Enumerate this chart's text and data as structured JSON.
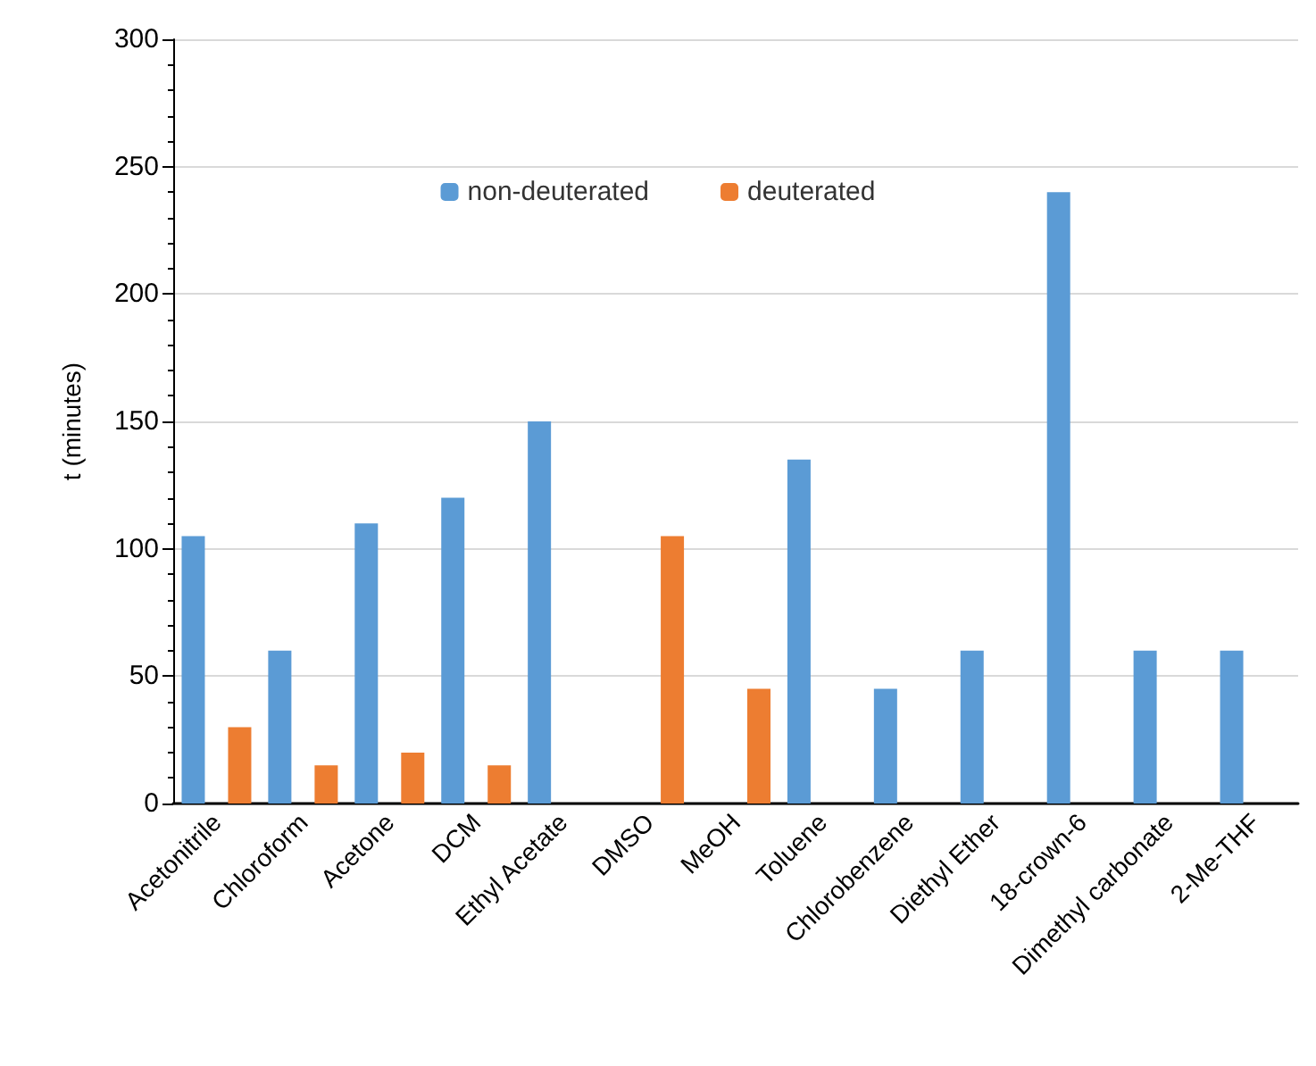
{
  "chart_data": {
    "type": "bar",
    "ylabel": "t (minutes)",
    "categories": [
      "Acetonitrile",
      "Chloroform",
      "Acetone",
      "DCM",
      "Ethyl Acetate",
      "DMSO",
      "MeOH",
      "Toluene",
      "Chlorobenzene",
      "Diethyl Ether",
      "18-crown-6",
      "Dimethyl carbonate",
      "2-Me-THF"
    ],
    "series": [
      {
        "name": "non-deuterated",
        "color": "#5b9bd5",
        "values": [
          105,
          60,
          110,
          120,
          150,
          null,
          null,
          135,
          45,
          60,
          240,
          60,
          60
        ]
      },
      {
        "name": "deuterated",
        "color": "#ed7d31",
        "values": [
          30,
          15,
          20,
          15,
          null,
          105,
          45,
          null,
          null,
          null,
          null,
          null,
          null
        ]
      }
    ],
    "ylim": [
      0,
      300
    ],
    "yticks": [
      0,
      50,
      100,
      150,
      200,
      250,
      300
    ],
    "grid": "y",
    "legend": "top"
  }
}
